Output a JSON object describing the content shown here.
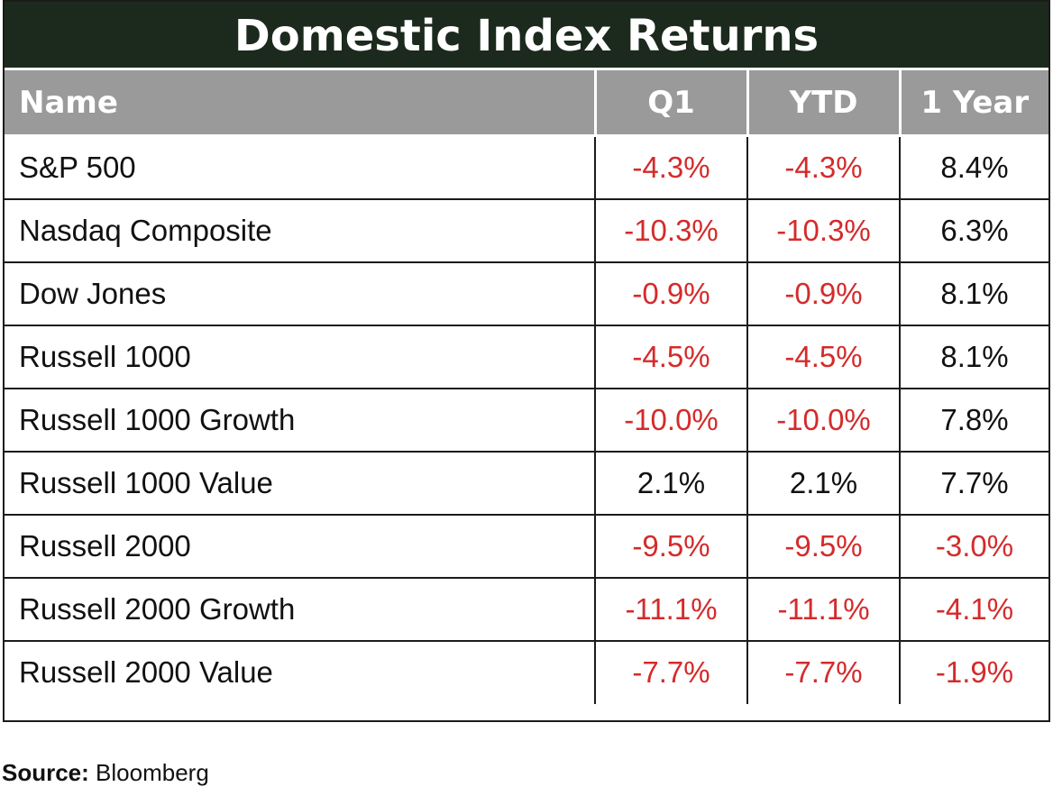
{
  "title": "Domestic Index Returns",
  "columns": {
    "name": "Name",
    "q1": "Q1",
    "ytd": "YTD",
    "one_year": "1 Year"
  },
  "rows": [
    {
      "name": "S&P 500",
      "q1": "-4.3%",
      "ytd": "-4.3%",
      "one_year": "8.4%"
    },
    {
      "name": "Nasdaq Composite",
      "q1": "-10.3%",
      "ytd": "-10.3%",
      "one_year": "6.3%"
    },
    {
      "name": "Dow Jones",
      "q1": "-0.9%",
      "ytd": "-0.9%",
      "one_year": "8.1%"
    },
    {
      "name": "Russell 1000",
      "q1": "-4.5%",
      "ytd": "-4.5%",
      "one_year": "8.1%"
    },
    {
      "name": "Russell 1000 Growth",
      "q1": "-10.0%",
      "ytd": "-10.0%",
      "one_year": "7.8%"
    },
    {
      "name": "Russell 1000 Value",
      "q1": "2.1%",
      "ytd": "2.1%",
      "one_year": "7.7%"
    },
    {
      "name": "Russell 2000",
      "q1": "-9.5%",
      "ytd": "-9.5%",
      "one_year": "-3.0%"
    },
    {
      "name": "Russell 2000 Growth",
      "q1": "-11.1%",
      "ytd": "-11.1%",
      "one_year": "-4.1%"
    },
    {
      "name": "Russell 2000 Value",
      "q1": "-7.7%",
      "ytd": "-7.7%",
      "one_year": "-1.9%"
    }
  ],
  "source": {
    "label": "Source:",
    "value": "Bloomberg"
  },
  "colors": {
    "title_bg": "#1b2a1c",
    "header_bg": "#9a9a9a",
    "negative": "#d42b2b",
    "positive": "#111111"
  }
}
